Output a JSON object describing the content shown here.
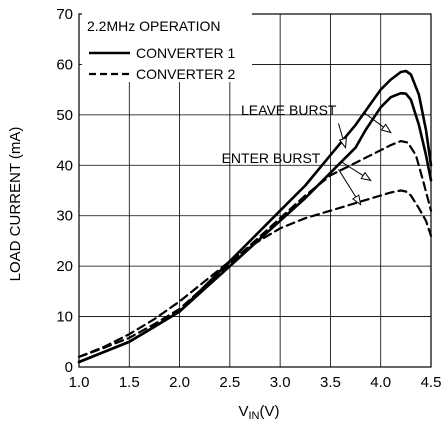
{
  "chart_data": {
    "type": "line",
    "xlabel": "V",
    "xlabel_sub": "IN",
    "xlabel_unit": "(V)",
    "ylabel": "LOAD CURRENT (mA)",
    "xlim": [
      1.0,
      4.5
    ],
    "ylim": [
      0,
      70
    ],
    "x_ticks": [
      "1.0",
      "1.5",
      "2.0",
      "2.5",
      "3.0",
      "3.5",
      "4.0",
      "4.5"
    ],
    "y_ticks": [
      "0",
      "10",
      "20",
      "30",
      "40",
      "50",
      "60",
      "70"
    ],
    "grid": true,
    "legend_title": "2.2MHz OPERATION",
    "legend_position": "top-left",
    "series": [
      {
        "name": "CONVERTER 1",
        "style": "solid",
        "curves": [
          {
            "x": [
              1.0,
              1.25,
              1.5,
              1.75,
              2.0,
              2.25,
              2.5,
              2.75,
              3.0,
              3.25,
              3.5,
              3.75,
              4.0,
              4.1,
              4.2,
              4.25,
              4.3,
              4.38,
              4.45,
              4.5
            ],
            "y": [
              1,
              3,
              5,
              8,
              11,
              16,
              21,
              26,
              31,
              36,
              42,
              48,
              55,
              57,
              58.5,
              58.7,
              58,
              54,
              47,
              40
            ]
          },
          {
            "x": [
              1.0,
              1.25,
              1.5,
              1.75,
              2.0,
              2.25,
              2.5,
              2.75,
              3.0,
              3.25,
              3.5,
              3.75,
              3.85,
              4.0,
              4.1,
              4.2,
              4.25,
              4.3,
              4.38,
              4.45,
              4.5
            ],
            "y": [
              1,
              3,
              5,
              8,
              11,
              15.5,
              20,
              24.5,
              29,
              33.5,
              38.5,
              43.5,
              47,
              51.5,
              53.5,
              54.3,
              54.2,
              53,
              48,
              42,
              37
            ]
          }
        ]
      },
      {
        "name": "CONVERTER 2",
        "style": "dashed",
        "curves": [
          {
            "x": [
              1.0,
              1.25,
              1.5,
              1.75,
              2.0,
              2.25,
              2.5,
              2.75,
              3.0,
              3.25,
              3.5,
              3.75,
              4.0,
              4.1,
              4.2,
              4.27,
              4.35,
              4.42,
              4.5
            ],
            "y": [
              2,
              3.8,
              5.8,
              8.5,
              11.5,
              16,
              20.5,
              25,
              29.5,
              34,
              38,
              40.5,
              43,
              44,
              44.8,
              44.5,
              42,
              37,
              31
            ]
          },
          {
            "x": [
              1.0,
              1.25,
              1.5,
              1.75,
              2.0,
              2.25,
              2.5,
              2.75,
              3.0,
              3.25,
              3.5,
              3.75,
              4.0,
              4.1,
              4.2,
              4.25,
              4.3,
              4.38,
              4.45,
              4.5
            ],
            "y": [
              2,
              4,
              6.5,
              9.5,
              13,
              17,
              21,
              24.5,
              27.5,
              29.5,
              31,
              32.5,
              34,
              34.6,
              35,
              34.8,
              34,
              31.5,
              29,
              26
            ]
          }
        ]
      }
    ],
    "annotations": [
      {
        "text": "LEAVE BURST",
        "text_at": [
          3.56,
          50
        ],
        "arrows": [
          {
            "from": [
              3.83,
              50.5
            ],
            "to": [
              4.1,
              46.5
            ]
          },
          {
            "from": [
              3.58,
              48.3
            ],
            "to": [
              3.65,
              43.5
            ]
          }
        ]
      },
      {
        "text": "ENTER BURST",
        "text_at": [
          3.4,
          40.5
        ],
        "arrows": [
          {
            "from": [
              3.6,
              40.8
            ],
            "to": [
              3.9,
              37
            ]
          },
          {
            "from": [
              3.58,
              39.2
            ],
            "to": [
              3.8,
              32.2
            ]
          }
        ]
      }
    ]
  }
}
